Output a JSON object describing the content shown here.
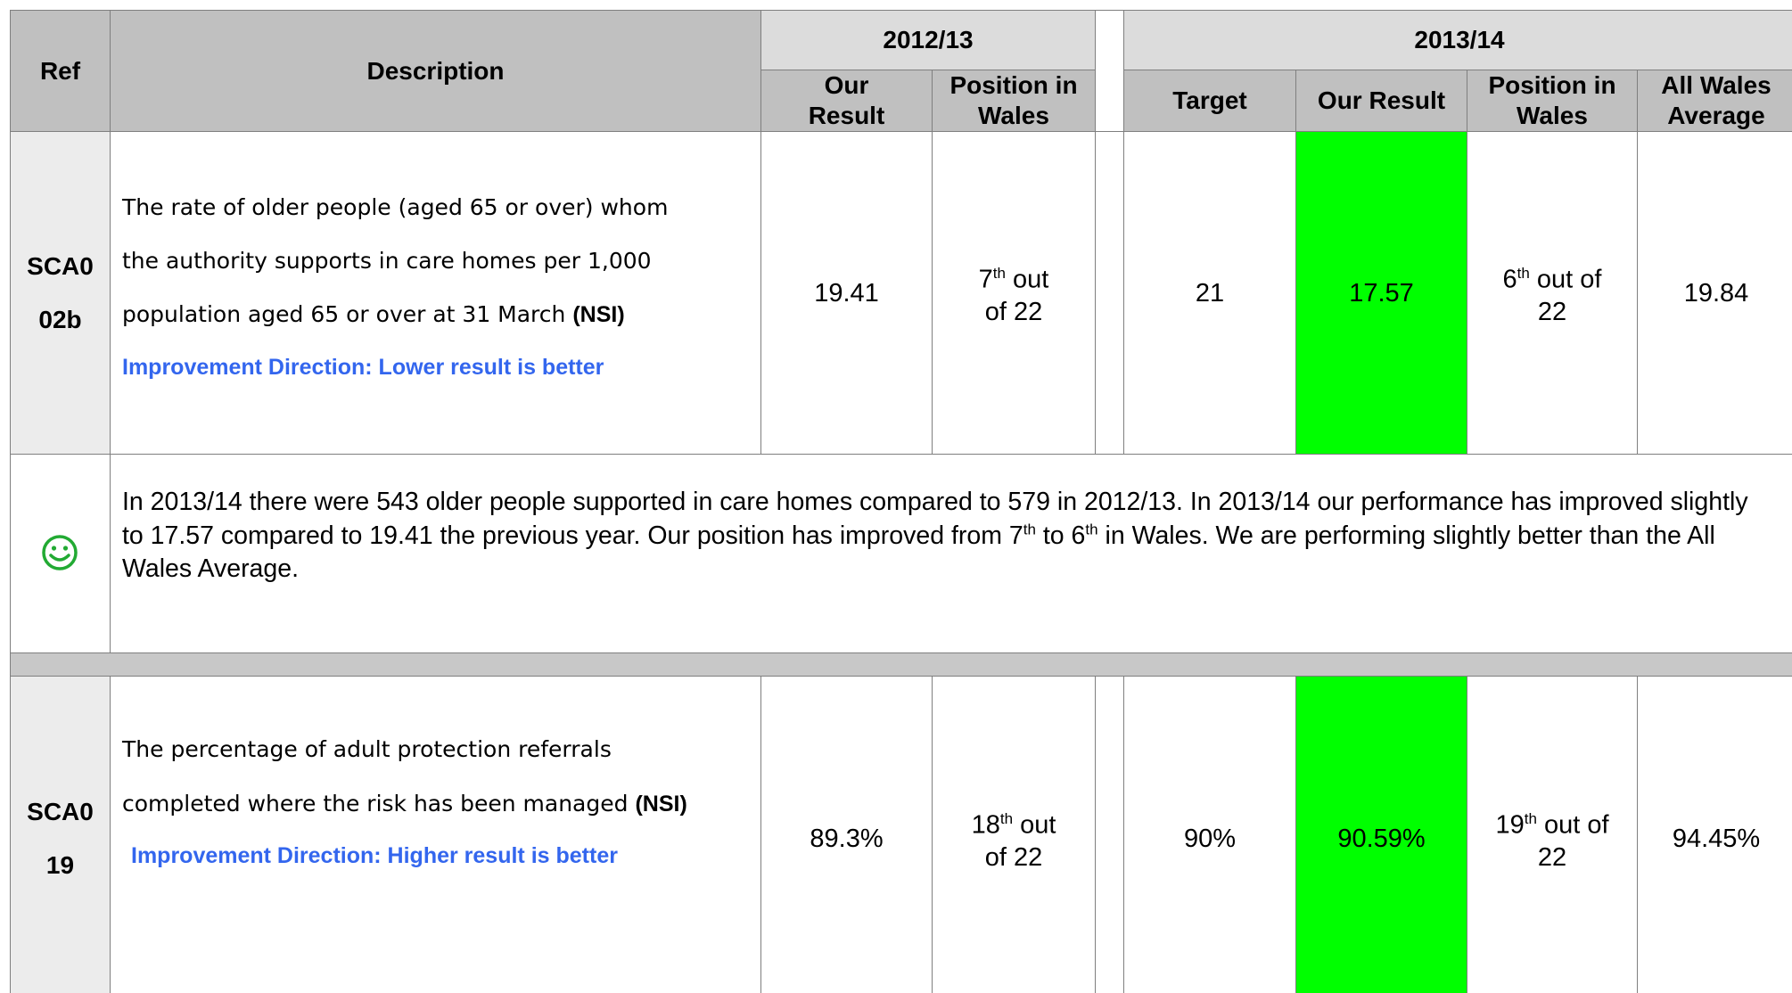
{
  "header": {
    "ref": "Ref",
    "description": "Description",
    "year_1": "2012/13",
    "year_1_columns": [
      "Our Result",
      "Position in Wales"
    ],
    "year_2": "2013/14",
    "year_2_columns": [
      "Target",
      "Our Result",
      "Position in Wales",
      "All Wales Average"
    ]
  },
  "rows": [
    {
      "ref": "SCA002b",
      "description": [
        "The rate of older people (aged 65 or over) whom",
        "the authority supports in care homes per 1,000",
        "population aged 65 or over at 31 March"
      ],
      "nsi": "(NSI)",
      "direction": "Improvement Direction: Lower result is better",
      "result_1": "19.41",
      "position_1": {
        "rank": "7",
        "suffix": "th",
        "rest": "out of 22"
      },
      "target": "21",
      "result_2": "17.57",
      "position_2": {
        "rank": "6",
        "suffix": "th",
        "rest": "out of 22"
      },
      "average": "19.84",
      "commentary": [
        "In 2013/14 there were 543 older people supported in care homes compared to 579 in 2012/13. In 2013/14 our performance has improved slightly to 17.57 compared to 19.41 the previous year. Our position has improved from 7",
        "th",
        " to 6",
        "th",
        " in Wales. We are performing slightly better than the All Wales Average."
      ]
    },
    {
      "ref": "SCA019",
      "description": [
        "The percentage of adult protection referrals",
        "completed where the risk has been managed"
      ],
      "nsi": "(NSI)",
      "direction": "Improvement Direction: Higher result is better",
      "result_1": "89.3%",
      "position_1": {
        "rank": "18",
        "suffix": "th",
        "rest": "out of 22"
      },
      "target": "90%",
      "result_2": "90.59%",
      "position_2": {
        "rank": "19",
        "suffix": "th",
        "rest": "out of 22"
      },
      "average": "94.45%"
    }
  ]
}
